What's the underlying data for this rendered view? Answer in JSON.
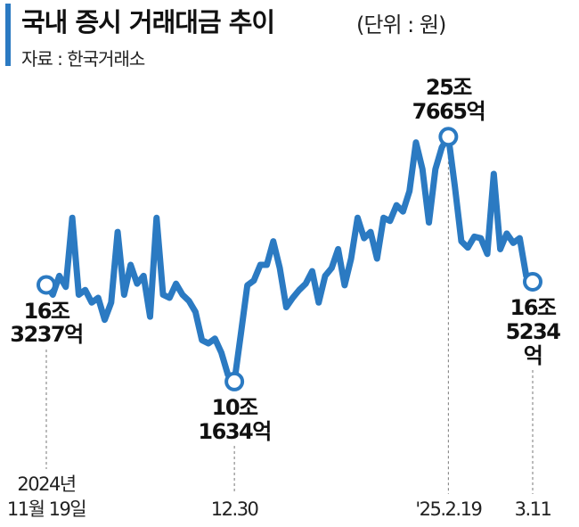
{
  "chart_data": {
    "type": "line",
    "title": "국내 증시 거래대금 추이",
    "subtitle": "(단위 : 원)",
    "source": "자료 : 한국거래소",
    "color": "#2b7ac2",
    "ylim": [
      8,
      28
    ],
    "categories": [
      "2024년\n11월 19일",
      null,
      null,
      null,
      null,
      null,
      null,
      null,
      null,
      null,
      null,
      null,
      null,
      null,
      null,
      null,
      null,
      null,
      null,
      null,
      null,
      null,
      null,
      null,
      null,
      null,
      null,
      null,
      null,
      "12.30",
      null,
      null,
      null,
      null,
      null,
      null,
      null,
      null,
      null,
      null,
      null,
      null,
      null,
      null,
      null,
      null,
      null,
      null,
      null,
      null,
      null,
      null,
      null,
      null,
      null,
      null,
      null,
      null,
      null,
      null,
      null,
      null,
      "'25.2.19",
      null,
      null,
      null,
      null,
      null,
      null,
      null,
      null,
      null,
      null,
      null,
      null,
      "3.11"
    ],
    "values": [
      16.3237,
      15.7,
      16.9,
      16.2,
      20.6,
      15.7,
      16.0,
      15.2,
      15.5,
      14.1,
      15.2,
      19.7,
      15.7,
      17.6,
      16.4,
      16.9,
      14.3,
      20.6,
      15.7,
      15.5,
      16.4,
      15.7,
      15.3,
      14.6,
      12.8,
      12.6,
      12.9,
      12.0,
      10.6,
      10.1634,
      13.2,
      16.3,
      16.6,
      17.6,
      17.6,
      19.1,
      17.4,
      14.9,
      15.5,
      16.0,
      16.4,
      17.2,
      15.2,
      16.9,
      17.4,
      18.6,
      16.3,
      18.0,
      20.6,
      19.3,
      19.7,
      18.0,
      20.6,
      20.4,
      21.4,
      21.0,
      22.3,
      25.4,
      23.7,
      20.3,
      23.7,
      25.1,
      25.7665,
      22.6,
      19.1,
      18.7,
      19.4,
      19.3,
      18.3,
      23.4,
      18.6,
      19.6,
      19.0,
      19.3,
      16.9,
      16.5234
    ],
    "value_labels": [
      "16조\n3237억",
      null,
      null,
      null,
      null,
      null,
      null,
      null,
      null,
      null,
      null,
      null,
      null,
      null,
      null,
      null,
      null,
      null,
      null,
      null,
      null,
      null,
      null,
      null,
      null,
      null,
      null,
      null,
      null,
      "10조\n1634억",
      null,
      null,
      null,
      null,
      null,
      null,
      null,
      null,
      null,
      null,
      null,
      null,
      null,
      null,
      null,
      null,
      null,
      null,
      null,
      null,
      null,
      null,
      null,
      null,
      null,
      null,
      null,
      null,
      null,
      null,
      null,
      null,
      "25조\n7665억",
      null,
      null,
      null,
      null,
      null,
      null,
      null,
      null,
      null,
      null,
      null,
      null,
      "16조\n5234억"
    ]
  }
}
